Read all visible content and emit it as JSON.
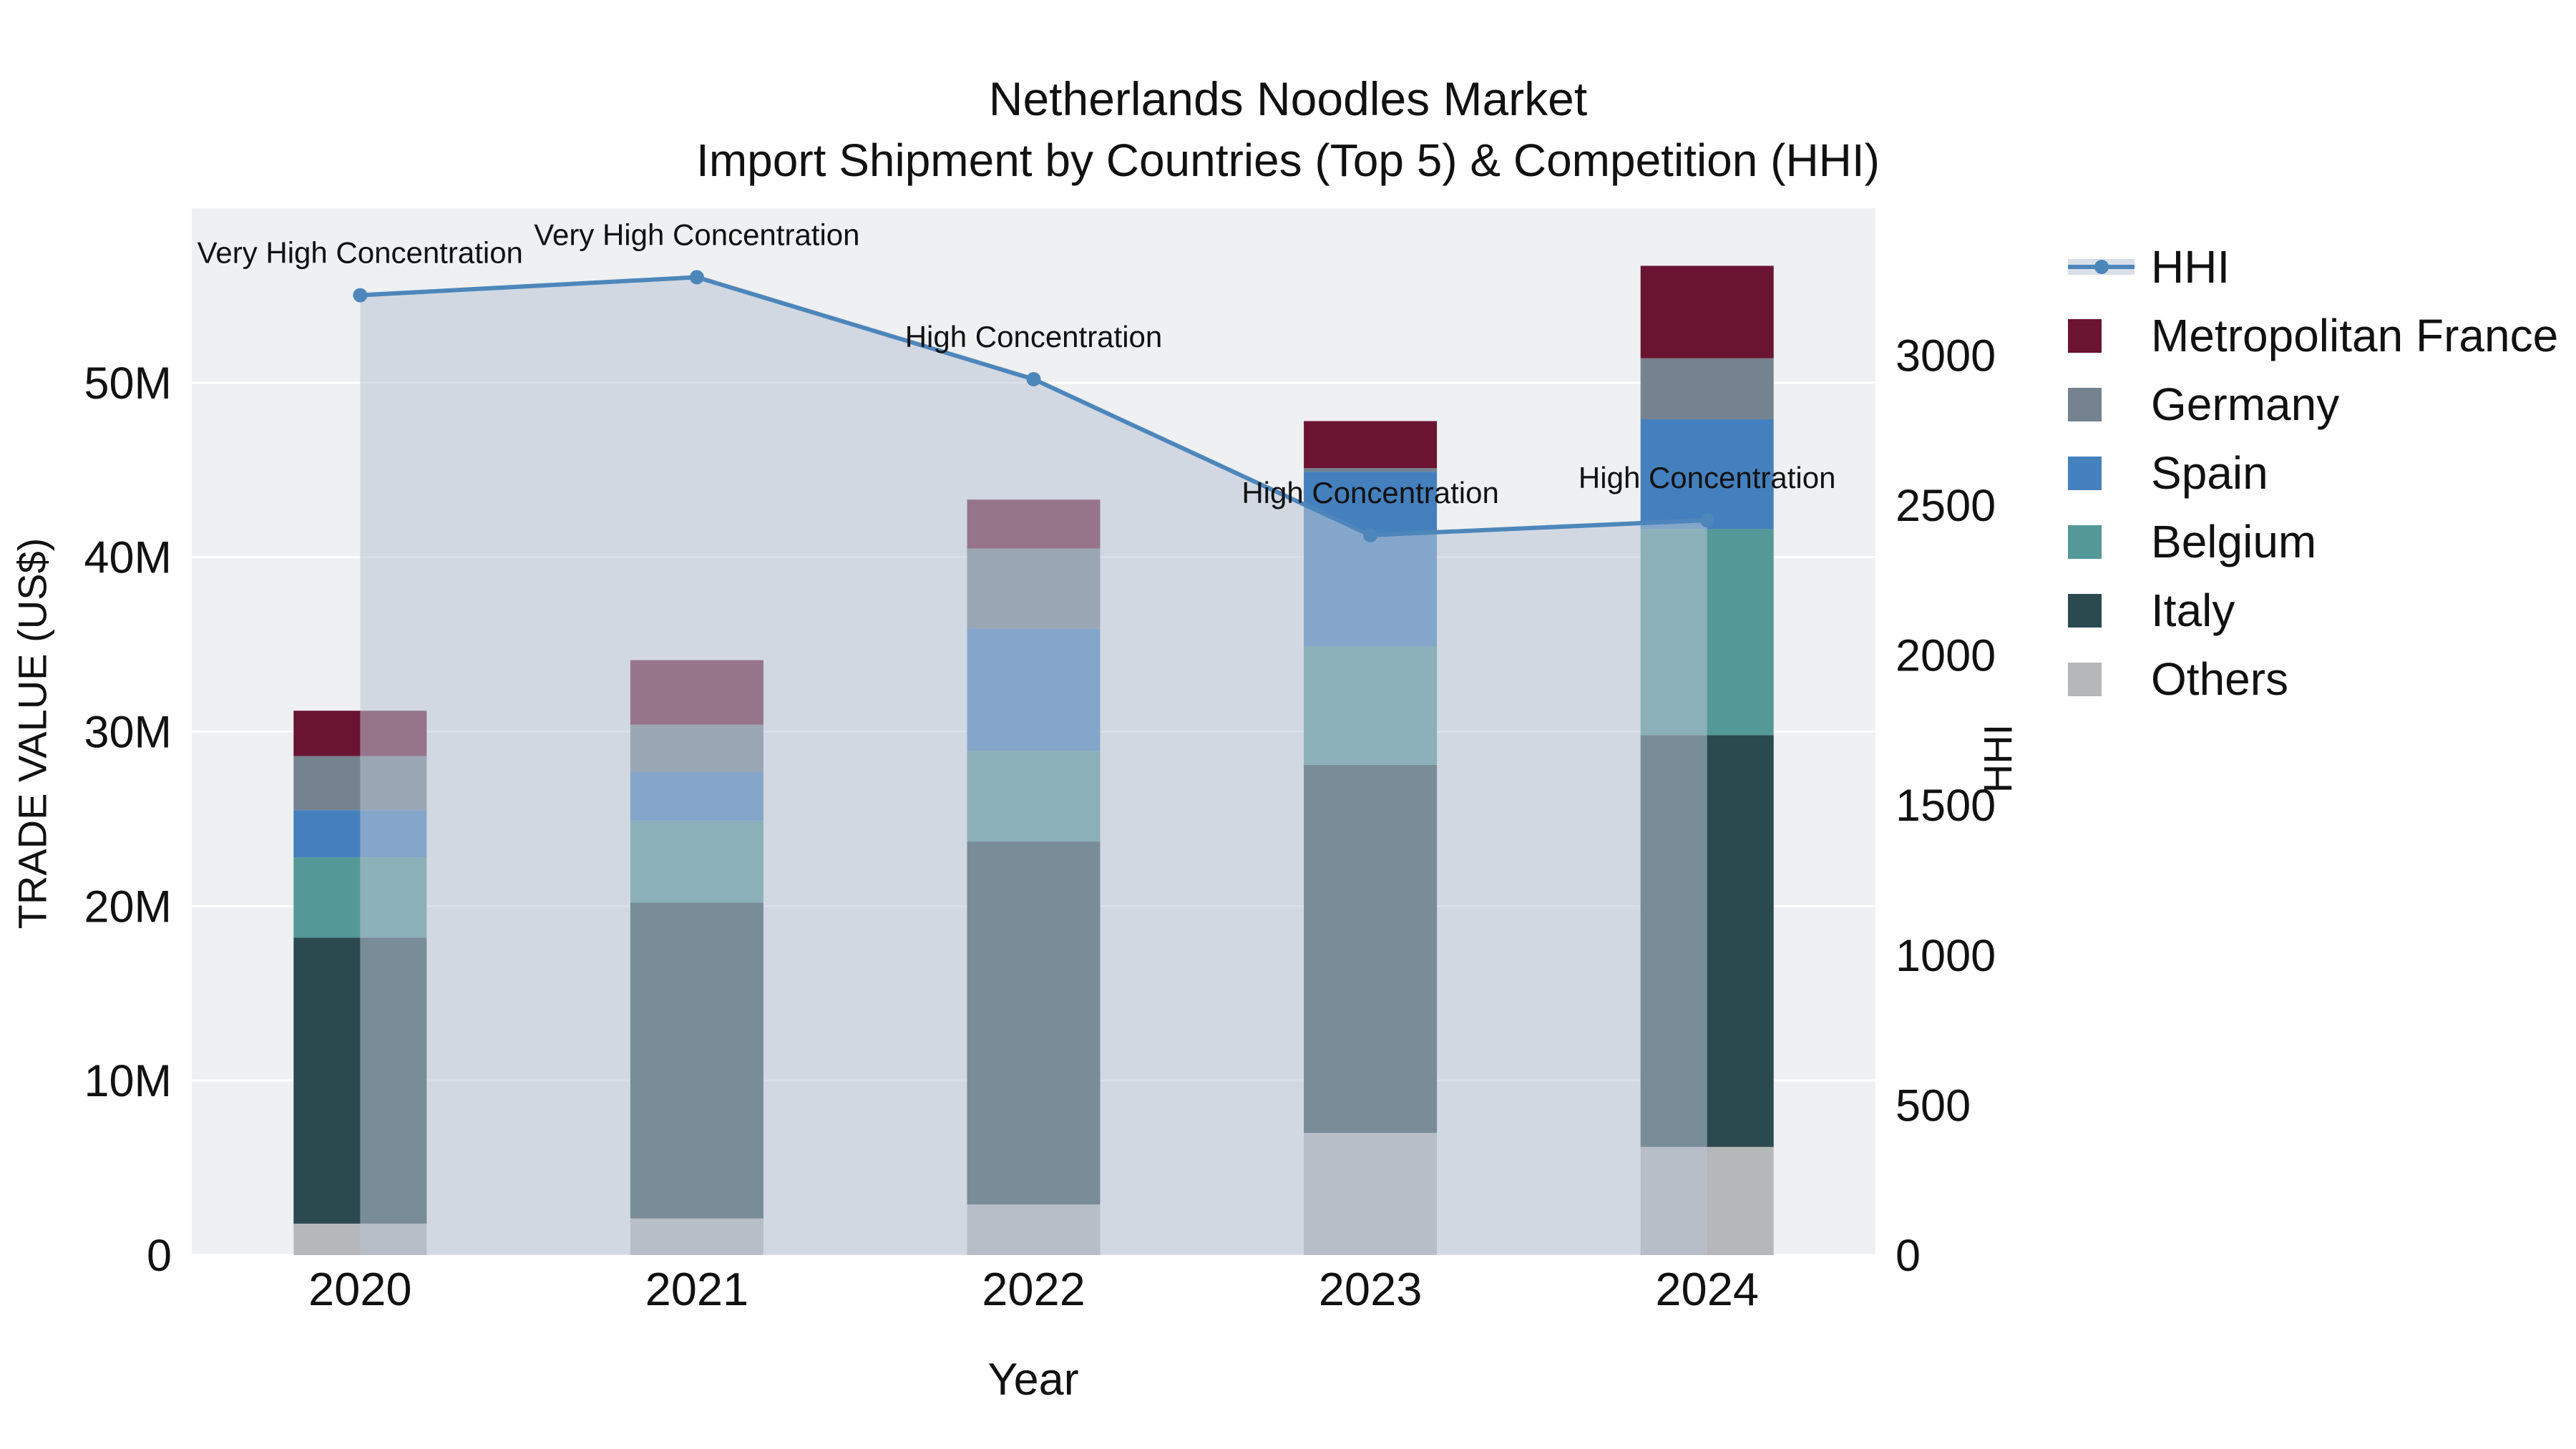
{
  "title": "Netherlands Noodles Market",
  "subtitle": "Import Shipment by Countries (Top 5) & Competition (HHI)",
  "axes": {
    "x_label": "Year",
    "y_left_label": "TRADE VALUE (US$)",
    "y_right_label": "HHI"
  },
  "legend": {
    "items": [
      {
        "label": "HHI",
        "type": "line",
        "color": "#4d86bb"
      },
      {
        "label": "Metropolitan France",
        "type": "square",
        "color": "#6b1432"
      },
      {
        "label": "Germany",
        "type": "square",
        "color": "#75828f"
      },
      {
        "label": "Spain",
        "type": "square",
        "color": "#4480bd"
      },
      {
        "label": "Belgium",
        "type": "square",
        "color": "#559898"
      },
      {
        "label": "Italy",
        "type": "square",
        "color": "#2b4a50"
      },
      {
        "label": "Others",
        "type": "square",
        "color": "#b5b7b9"
      }
    ]
  },
  "chart_data": {
    "type": "bar+line",
    "unit": "US$ millions (left axis), HHI index (right axis)",
    "categories": [
      "2020",
      "2021",
      "2022",
      "2023",
      "2024"
    ],
    "series": [
      {
        "name": "Others",
        "color": "#b5b7b9",
        "values": [
          1.8,
          2.1,
          2.9,
          7.0,
          6.2
        ]
      },
      {
        "name": "Italy",
        "color": "#2b4a50",
        "values": [
          16.4,
          18.1,
          20.8,
          21.1,
          23.6
        ]
      },
      {
        "name": "Belgium",
        "color": "#559898",
        "values": [
          4.6,
          4.7,
          5.2,
          6.8,
          11.8
        ]
      },
      {
        "name": "Spain",
        "color": "#4480bd",
        "values": [
          2.7,
          2.8,
          7.0,
          10.0,
          6.3
        ]
      },
      {
        "name": "Germany",
        "color": "#75828f",
        "values": [
          3.1,
          2.7,
          4.6,
          0.2,
          3.5
        ]
      },
      {
        "name": "Metropolitan France",
        "color": "#6b1432",
        "values": [
          2.6,
          3.7,
          2.8,
          2.7,
          5.3
        ]
      }
    ],
    "hhi": {
      "name": "HHI",
      "color": "#4d86bb",
      "values": [
        3200,
        3260,
        2920,
        2400,
        2450
      ]
    },
    "annotations": [
      "Very High Concentration",
      "Very High Concentration",
      "High Concentration",
      "High Concentration",
      "High Concentration"
    ],
    "left_axis": {
      "tick_labels": [
        "0",
        "10M",
        "20M",
        "30M",
        "40M",
        "50M"
      ],
      "tick_values": [
        0,
        10,
        20,
        30,
        40,
        50
      ],
      "max": 60
    },
    "right_axis": {
      "tick_labels": [
        "0",
        "500",
        "1000",
        "1500",
        "2000",
        "2500",
        "3000"
      ],
      "tick_values": [
        0,
        500,
        1000,
        1500,
        2000,
        2500,
        3000
      ],
      "max": 3490
    },
    "layout_hints": {
      "legend_position": "right",
      "grid": "horizontal-white",
      "hhi_area_fill": true
    },
    "colors": {
      "plot_bg": "#eef0f1",
      "hhi_fill": "rgba(186,196,214,0.55)",
      "grid": "#ffffff",
      "text": "#111111"
    }
  }
}
